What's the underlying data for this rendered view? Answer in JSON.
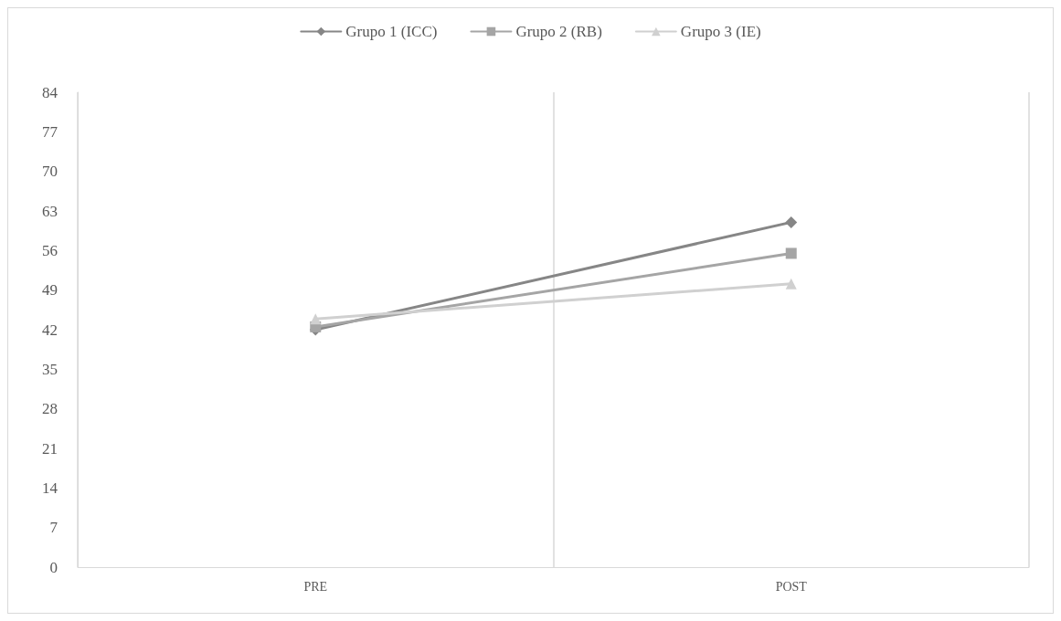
{
  "chart_data": {
    "type": "line",
    "categories": [
      "PRE",
      "POST"
    ],
    "series": [
      {
        "name": "Grupo 1 (ICC)",
        "color": "#868686",
        "values": [
          42.0,
          61.0
        ],
        "marker": "diamond"
      },
      {
        "name": "Grupo 2 (RB)",
        "color": "#a5a5a5",
        "values": [
          42.5,
          55.5
        ],
        "marker": "square"
      },
      {
        "name": "Grupo 3 (IE)",
        "color": "#d0d0d0",
        "values": [
          43.9,
          50.1
        ],
        "marker": "triangle"
      }
    ],
    "ylim": [
      0,
      84
    ],
    "yticks": [
      0,
      7,
      14,
      21,
      28,
      35,
      42,
      49,
      56,
      63,
      70,
      77,
      84
    ],
    "grid": "x",
    "legend": "top",
    "line_style": "solid"
  }
}
